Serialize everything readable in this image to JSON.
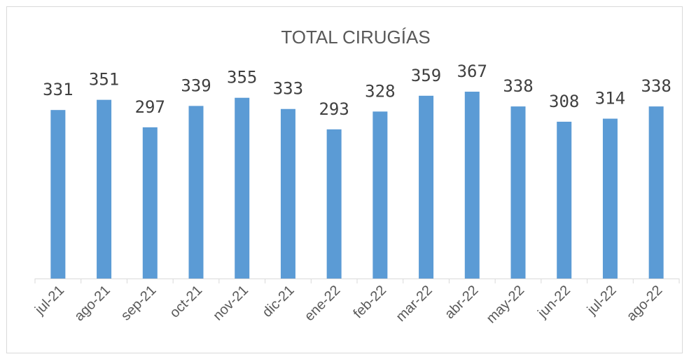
{
  "chart_data": {
    "type": "bar",
    "title": "TOTAL CIRUGÍAS",
    "categories": [
      "jul-21",
      "ago-21",
      "sep-21",
      "oct-21",
      "nov-21",
      "dic-21",
      "ene-22",
      "feb-22",
      "mar-22",
      "abr-22",
      "may-22",
      "jun-22",
      "jul-22",
      "ago-22"
    ],
    "values": [
      331,
      351,
      297,
      339,
      355,
      333,
      293,
      328,
      359,
      367,
      338,
      308,
      314,
      338
    ],
    "color": "#5b9bd5",
    "ylim": [
      0,
      400
    ],
    "grid": false
  }
}
